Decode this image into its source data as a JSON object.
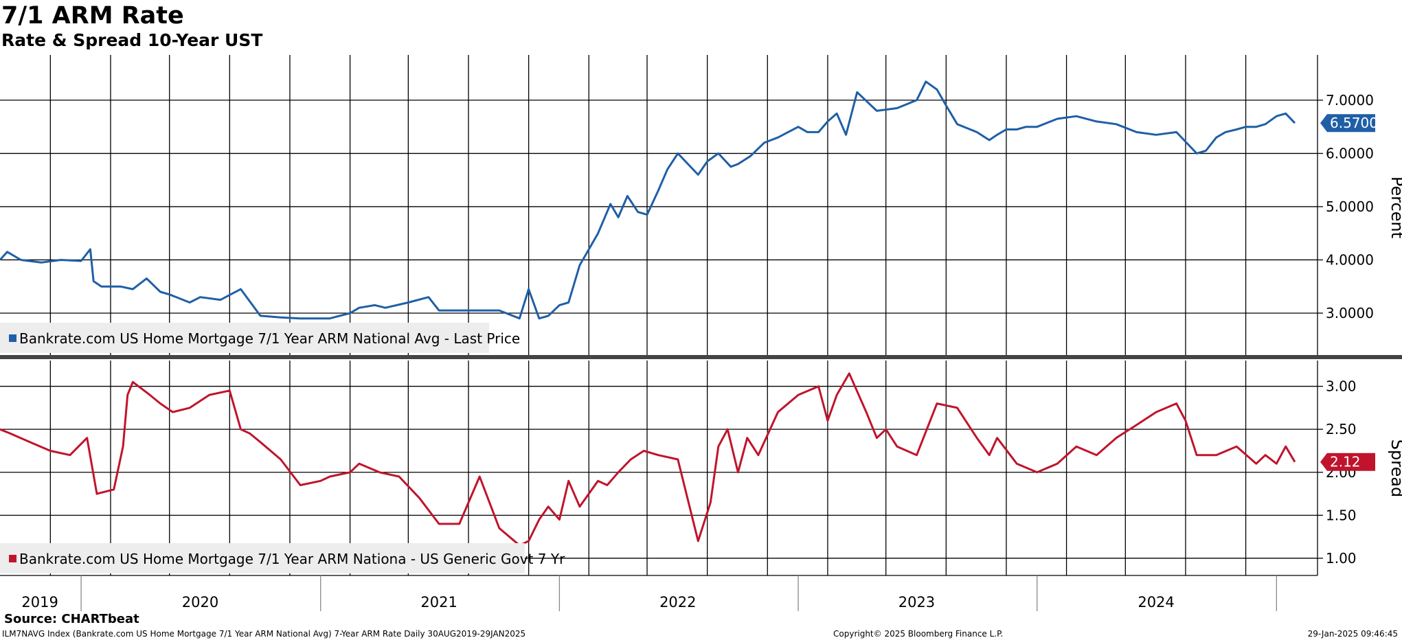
{
  "header": {
    "title": "7/1 ARM Rate",
    "subtitle": "Rate & Spread 10-Year UST"
  },
  "footer": {
    "source": "Source: CHARTbeat",
    "index_description": "ILM7NAVG Index (Bankrate.com US Home Mortgage 7/1 Year ARM National Avg) 7-Year ARM Rate  Daily 30AUG2019-29JAN2025",
    "copyright": "Copyright© 2025 Bloomberg Finance L.P.",
    "timestamp": "29-Jan-2025 09:46:45"
  },
  "colors": {
    "rate": "#1f5fa6",
    "spread": "#c0142c",
    "grid": "#000000",
    "legend_bg": "#ededed"
  },
  "chart_data": [
    {
      "type": "line",
      "panel": "top",
      "ylabel": "Percent",
      "ylim": [
        2.2,
        7.85
      ],
      "yticks": [
        3.0,
        4.0,
        5.0,
        6.0,
        7.0
      ],
      "ytick_labels": [
        "3.0000",
        "4.0000",
        "5.0000",
        "6.0000",
        "7.0000"
      ],
      "last_value_label": "6.5700",
      "last_value": 6.57,
      "grid": true,
      "legend_position": "bottom-left",
      "series": [
        {
          "name": "Bankrate.com US Home Mortgage 7/1 Year ARM National Avg - Last Price",
          "color": "#1f5fa6",
          "x": [
            "2019-08-30",
            "2019-09-10",
            "2019-10-01",
            "2019-11-01",
            "2019-12-01",
            "2020-01-01",
            "2020-01-15",
            "2020-01-20",
            "2020-02-01",
            "2020-03-01",
            "2020-03-20",
            "2020-04-10",
            "2020-05-01",
            "2020-05-15",
            "2020-06-15",
            "2020-07-01",
            "2020-08-01",
            "2020-09-01",
            "2020-10-01",
            "2020-11-01",
            "2020-12-01",
            "2021-01-15",
            "2021-02-15",
            "2021-03-01",
            "2021-03-25",
            "2021-04-10",
            "2021-05-15",
            "2021-06-15",
            "2021-07-01",
            "2021-08-01",
            "2021-09-01",
            "2021-10-01",
            "2021-11-01",
            "2021-11-15",
            "2021-12-01",
            "2021-12-15",
            "2022-01-01",
            "2022-01-15",
            "2022-02-01",
            "2022-02-15",
            "2022-03-01",
            "2022-03-20",
            "2022-04-01",
            "2022-04-15",
            "2022-05-01",
            "2022-05-15",
            "2022-06-01",
            "2022-06-15",
            "2022-07-01",
            "2022-08-01",
            "2022-08-15",
            "2022-09-01",
            "2022-09-20",
            "2022-10-01",
            "2022-10-20",
            "2022-11-10",
            "2022-12-01",
            "2023-01-01",
            "2023-01-15",
            "2023-02-01",
            "2023-02-15",
            "2023-03-01",
            "2023-03-15",
            "2023-04-01",
            "2023-05-01",
            "2023-06-01",
            "2023-07-01",
            "2023-07-15",
            "2023-08-01",
            "2023-08-15",
            "2023-09-01",
            "2023-10-01",
            "2023-10-20",
            "2023-11-01",
            "2023-11-15",
            "2023-12-01",
            "2023-12-15",
            "2024-01-01",
            "2024-02-01",
            "2024-03-01",
            "2024-04-01",
            "2024-05-01",
            "2024-06-01",
            "2024-07-01",
            "2024-08-01",
            "2024-09-01",
            "2024-09-15",
            "2024-10-01",
            "2024-10-15",
            "2024-11-01",
            "2024-11-15",
            "2024-12-01",
            "2024-12-15",
            "2025-01-01",
            "2025-01-15",
            "2025-01-29"
          ],
          "y": [
            4.0,
            4.15,
            4.0,
            3.95,
            4.0,
            3.98,
            4.2,
            3.6,
            3.5,
            3.5,
            3.45,
            3.65,
            3.4,
            3.35,
            3.2,
            3.3,
            3.25,
            3.45,
            2.95,
            2.92,
            2.9,
            2.9,
            3.0,
            3.1,
            3.15,
            3.1,
            3.2,
            3.3,
            3.05,
            3.05,
            3.05,
            3.05,
            2.9,
            3.45,
            2.9,
            2.95,
            3.15,
            3.2,
            3.9,
            4.2,
            4.5,
            5.05,
            4.8,
            5.2,
            4.9,
            4.85,
            5.3,
            5.7,
            6.0,
            5.6,
            5.85,
            6.0,
            5.75,
            5.8,
            5.95,
            6.2,
            6.3,
            6.5,
            6.4,
            6.4,
            6.6,
            6.75,
            6.35,
            7.15,
            6.8,
            6.85,
            7.0,
            7.35,
            7.2,
            6.9,
            6.55,
            6.4,
            6.25,
            6.35,
            6.45,
            6.45,
            6.5,
            6.5,
            6.65,
            6.7,
            6.6,
            6.55,
            6.4,
            6.35,
            6.4,
            6.0,
            6.05,
            6.3,
            6.4,
            6.45,
            6.5,
            6.5,
            6.55,
            6.7,
            6.75,
            6.57
          ]
        }
      ]
    },
    {
      "type": "line",
      "panel": "bottom",
      "ylabel": "Spread",
      "ylim": [
        0.8,
        3.3
      ],
      "yticks": [
        1.0,
        1.5,
        2.0,
        2.5,
        3.0
      ],
      "ytick_labels": [
        "1.00",
        "1.50",
        "2.00",
        "2.50",
        "3.00"
      ],
      "last_value_label": "2.12",
      "last_value": 2.12,
      "grid": true,
      "legend_position": "bottom-left",
      "series": [
        {
          "name": "Bankrate.com US Home Mortgage 7/1 Year ARM Nationa - US Generic Govt 7 Yr",
          "color": "#c0142c",
          "x": [
            "2019-08-30",
            "2019-09-15",
            "2019-10-15",
            "2019-11-15",
            "2019-12-15",
            "2020-01-10",
            "2020-01-25",
            "2020-02-20",
            "2020-03-05",
            "2020-03-12",
            "2020-03-20",
            "2020-04-15",
            "2020-05-01",
            "2020-05-20",
            "2020-06-15",
            "2020-07-15",
            "2020-08-15",
            "2020-09-01",
            "2020-09-15",
            "2020-10-01",
            "2020-11-01",
            "2020-12-01",
            "2021-01-01",
            "2021-01-15",
            "2021-02-15",
            "2021-03-01",
            "2021-04-01",
            "2021-05-01",
            "2021-06-01",
            "2021-07-01",
            "2021-08-01",
            "2021-09-01",
            "2021-10-01",
            "2021-11-01",
            "2021-11-15",
            "2021-12-01",
            "2021-12-15",
            "2022-01-01",
            "2022-01-15",
            "2022-02-01",
            "2022-03-01",
            "2022-03-15",
            "2022-04-01",
            "2022-04-20",
            "2022-05-10",
            "2022-06-01",
            "2022-07-01",
            "2022-08-01",
            "2022-08-20",
            "2022-09-01",
            "2022-09-15",
            "2022-10-01",
            "2022-10-15",
            "2022-11-01",
            "2022-12-01",
            "2023-01-01",
            "2023-02-01",
            "2023-02-15",
            "2023-03-01",
            "2023-03-20",
            "2023-04-15",
            "2023-05-01",
            "2023-05-15",
            "2023-06-01",
            "2023-07-01",
            "2023-08-01",
            "2023-09-01",
            "2023-10-01",
            "2023-10-20",
            "2023-11-01",
            "2023-12-01",
            "2024-01-01",
            "2024-02-01",
            "2024-03-01",
            "2024-04-01",
            "2024-05-01",
            "2024-06-01",
            "2024-07-01",
            "2024-08-01",
            "2024-08-15",
            "2024-09-01",
            "2024-10-01",
            "2024-11-01",
            "2024-12-01",
            "2024-12-15",
            "2025-01-01",
            "2025-01-15",
            "2025-01-29"
          ],
          "y": [
            2.5,
            2.45,
            2.35,
            2.25,
            2.2,
            2.4,
            1.75,
            1.8,
            2.3,
            2.9,
            3.05,
            2.9,
            2.8,
            2.7,
            2.75,
            2.9,
            2.95,
            2.5,
            2.45,
            2.35,
            2.15,
            1.85,
            1.9,
            1.95,
            2.0,
            2.1,
            2.0,
            1.95,
            1.7,
            1.4,
            1.4,
            1.95,
            1.35,
            1.15,
            1.2,
            1.45,
            1.6,
            1.45,
            1.9,
            1.6,
            1.9,
            1.85,
            2.0,
            2.15,
            2.25,
            2.2,
            2.15,
            1.2,
            1.65,
            2.3,
            2.5,
            2.0,
            2.4,
            2.2,
            2.7,
            2.9,
            3.0,
            2.6,
            2.9,
            3.15,
            2.7,
            2.4,
            2.5,
            2.3,
            2.2,
            2.8,
            2.75,
            2.4,
            2.2,
            2.4,
            2.1,
            2.0,
            2.1,
            2.3,
            2.2,
            2.4,
            2.55,
            2.7,
            2.8,
            2.6,
            2.2,
            2.2,
            2.3,
            2.1,
            2.2,
            2.1,
            2.3,
            2.12
          ]
        }
      ]
    }
  ],
  "x_axis": {
    "start": "2019-08-30",
    "end": "2025-01-29",
    "year_labels": [
      "2019",
      "2020",
      "2021",
      "2022",
      "2023",
      "2024"
    ]
  }
}
